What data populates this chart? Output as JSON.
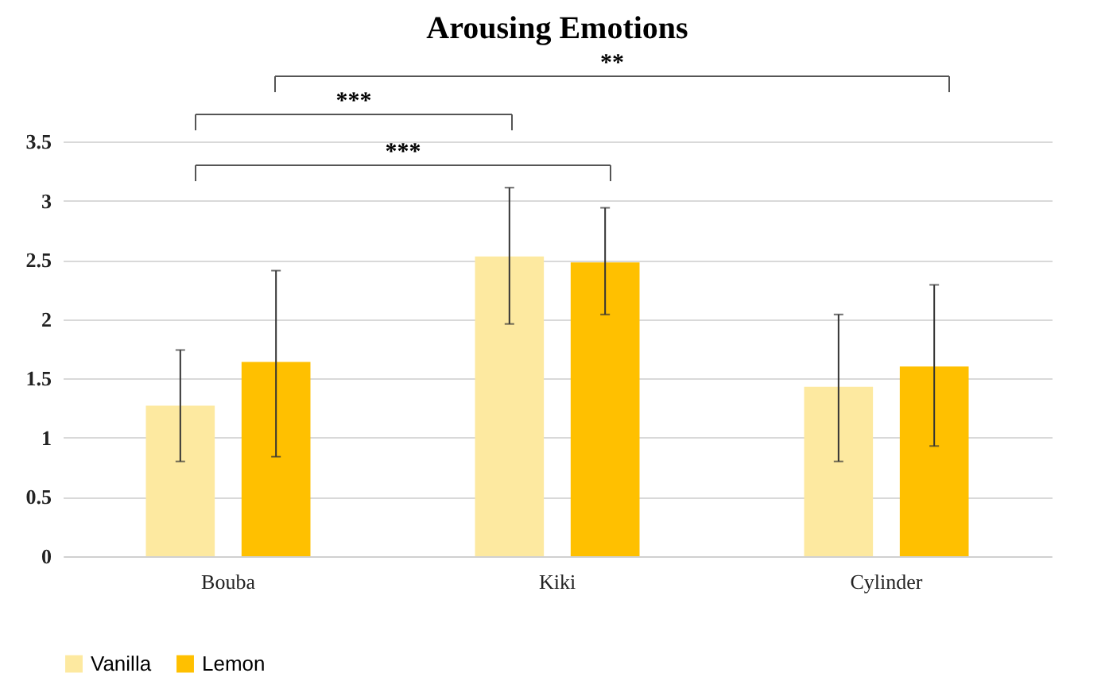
{
  "chart_data": {
    "type": "bar",
    "title": "Arousing Emotions",
    "categories": [
      "Bouba",
      "Kiki",
      "Cylinder"
    ],
    "series": [
      {
        "name": "Vanilla",
        "color": "#fde9a0",
        "values": [
          1.27,
          2.53,
          1.43
        ],
        "errors": [
          [
            0.8,
            1.74
          ],
          [
            1.96,
            3.11
          ],
          [
            0.8,
            2.04
          ]
        ]
      },
      {
        "name": "Lemon",
        "color": "#ffc000",
        "values": [
          1.64,
          2.48,
          1.6
        ],
        "errors": [
          [
            0.84,
            2.41
          ],
          [
            2.04,
            2.94
          ],
          [
            0.93,
            2.29
          ]
        ]
      }
    ],
    "ylim": [
      0,
      3.5
    ],
    "yticks": [
      0,
      0.5,
      1,
      1.5,
      2,
      2.5,
      3,
      3.5
    ],
    "grid": "y",
    "legend": "bottom",
    "annotations": [
      "***",
      "***",
      "**"
    ]
  }
}
